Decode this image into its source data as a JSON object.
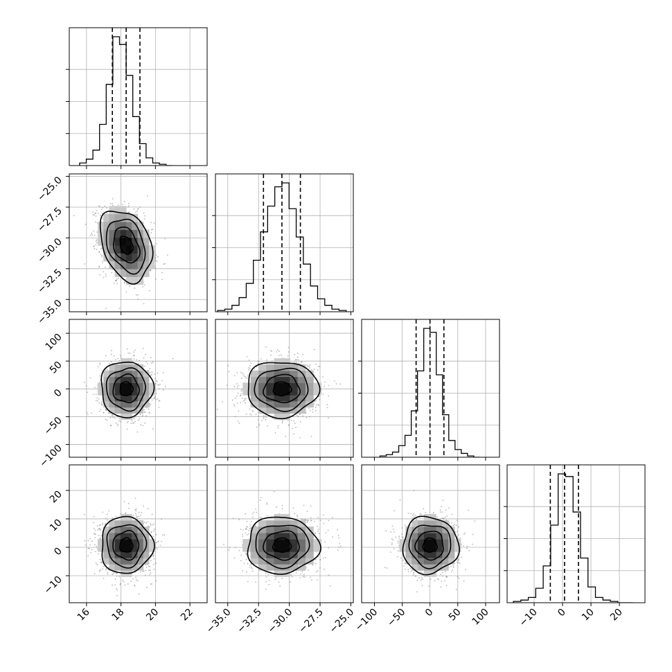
{
  "chart_data": {
    "type": "corner",
    "title": "",
    "parameters": [
      {
        "index": 0,
        "label": "",
        "median": 18.3,
        "sigma": 0.75,
        "q16": 17.5,
        "q50": 18.3,
        "q84": 19.1,
        "range": [
          15.0,
          23.0
        ],
        "ticks": [
          16,
          18,
          20,
          22
        ],
        "tick_labels": [
          "16",
          "18",
          "20",
          "22"
        ]
      },
      {
        "index": 1,
        "label": "",
        "median": -30.6,
        "sigma": 1.45,
        "q16": -32.1,
        "q50": -30.6,
        "q84": -29.1,
        "range": [
          -36.0,
          -24.8
        ],
        "ticks": [
          -35.0,
          -32.5,
          -30.0,
          -27.5,
          -25.0
        ],
        "tick_labels": [
          "−35.0",
          "−32.5",
          "−30.0",
          "−27.5",
          "−25.0"
        ]
      },
      {
        "index": 2,
        "label": "",
        "median": 0,
        "sigma": 25,
        "q16": -25,
        "q50": 0,
        "q84": 25,
        "range": [
          -123,
          125
        ],
        "ticks": [
          -100,
          -50,
          0,
          50,
          100
        ],
        "tick_labels": [
          "−100",
          "−50",
          "0",
          "50",
          "100"
        ]
      },
      {
        "index": 3,
        "label": "",
        "median": 0.7,
        "sigma": 5.0,
        "q16": -4.3,
        "q50": 0.7,
        "q84": 5.6,
        "range": [
          -19.5,
          29.0
        ],
        "ticks": [
          -10,
          0,
          10,
          20
        ],
        "tick_labels": [
          "−10",
          "0",
          "10",
          "20"
        ]
      }
    ],
    "correlations": [
      {
        "row": 1,
        "col": 0,
        "rho": -0.3
      },
      {
        "row": 2,
        "col": 0,
        "rho": 0.0
      },
      {
        "row": 2,
        "col": 1,
        "rho": 0.0
      },
      {
        "row": 3,
        "col": 0,
        "rho": 0.0
      },
      {
        "row": 3,
        "col": 1,
        "rho": 0.0
      },
      {
        "row": 3,
        "col": 2,
        "rho": 0.0
      }
    ],
    "histograms": [
      {
        "param": 0,
        "counts": [
          2,
          5,
          12,
          32,
          63,
          100,
          94,
          70,
          38,
          17,
          6,
          2,
          1,
          0
        ]
      },
      {
        "param": 1,
        "counts": [
          1,
          2,
          5,
          11,
          22,
          40,
          62,
          82,
          97,
          100,
          80,
          58,
          37,
          20,
          10,
          5,
          2,
          1
        ]
      },
      {
        "param": 2,
        "counts": [
          1,
          2,
          4,
          9,
          17,
          36,
          67,
          100,
          97,
          64,
          33,
          13,
          6,
          3,
          1,
          0
        ]
      },
      {
        "param": 3,
        "counts": [
          1,
          2,
          4,
          11,
          28,
          59,
          98,
          96,
          69,
          34,
          12,
          4,
          2,
          1,
          0,
          0
        ]
      }
    ],
    "histogram_ticks_shown": true,
    "contour_levels": [
      "0.5σ",
      "1σ",
      "1.5σ",
      "2σ"
    ],
    "grid": true,
    "legend": "none",
    "colors": {
      "line": "#000000",
      "grid": "#b0b0b0",
      "samples": "#7a7a7a",
      "background": "#ffffff"
    }
  }
}
